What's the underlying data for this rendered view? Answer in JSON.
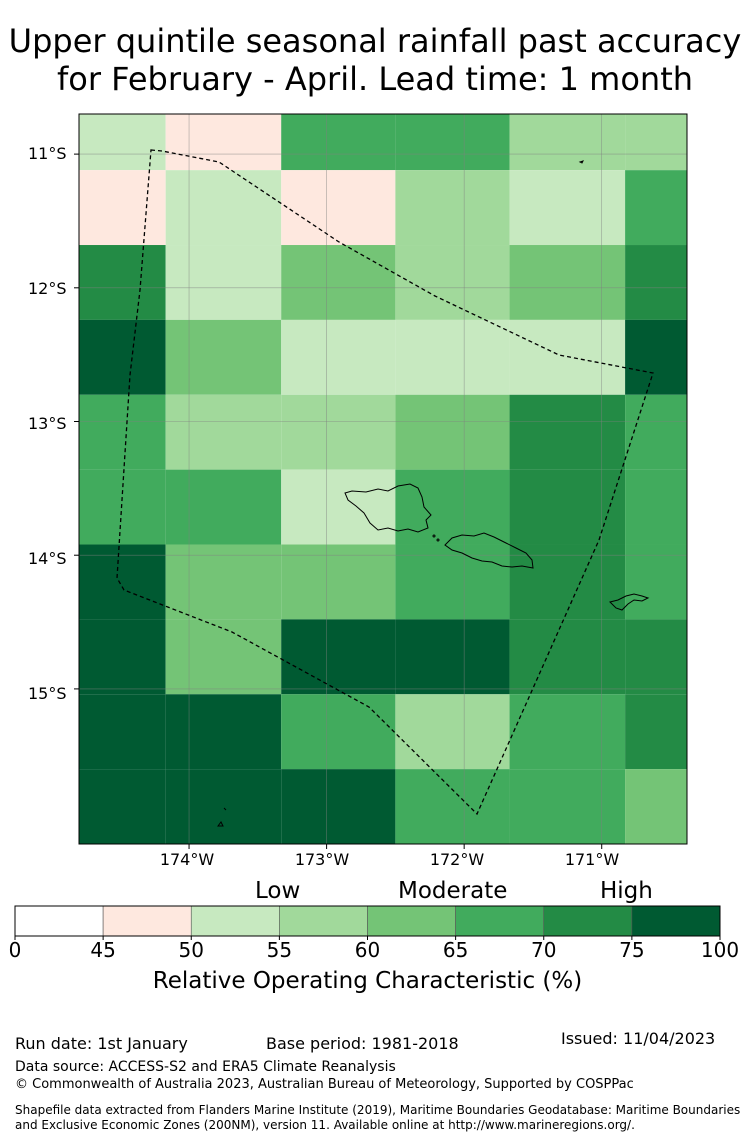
{
  "title": {
    "line1": "Upper quintile seasonal rainfall past accuracy",
    "line2": "for February - April. Lead time: 1 month"
  },
  "map": {
    "lat_labels": [
      "11°S",
      "12°S",
      "13°S",
      "14°S",
      "15°S"
    ],
    "lon_labels": [
      "174°W",
      "173°W",
      "172°W",
      "171°W"
    ],
    "roc_grid": [
      [
        50,
        45,
        65,
        65,
        55,
        55
      ],
      [
        45,
        50,
        45,
        55,
        50,
        65
      ],
      [
        70,
        50,
        60,
        55,
        60,
        70
      ],
      [
        75,
        60,
        50,
        50,
        50,
        100
      ],
      [
        65,
        55,
        55,
        60,
        70,
        65
      ],
      [
        65,
        65,
        50,
        65,
        70,
        65
      ],
      [
        75,
        60,
        60,
        65,
        70,
        65
      ],
      [
        100,
        60,
        75,
        100,
        70,
        70
      ],
      [
        100,
        100,
        65,
        55,
        65,
        70
      ],
      [
        100,
        100,
        100,
        65,
        65,
        60
      ]
    ],
    "grid_lat_bounds": [
      10.7,
      11.12,
      11.68,
      12.24,
      12.8,
      13.36,
      13.92,
      14.48,
      15.04,
      15.6,
      16.16
    ],
    "grid_lon_bounds": [
      -174.8,
      -174.17,
      -173.33,
      -172.5,
      -171.67,
      -170.83,
      -170.38
    ],
    "colors": {
      "white": "#ffffff",
      "low_45_50": "#fee8df",
      "c50_55": "#c7e9c0",
      "c55_60": "#a1d99b",
      "c60_65": "#74c476",
      "c65_70": "#41ab5d",
      "c70_75": "#238b45",
      "c75_100": "#005a32"
    }
  },
  "colorbar": {
    "bounds": [
      0,
      45,
      50,
      55,
      60,
      65,
      70,
      75,
      100
    ],
    "tick_labels": [
      "0",
      "45",
      "50",
      "55",
      "60",
      "65",
      "70",
      "75",
      "100"
    ],
    "colors": [
      "#ffffff",
      "#fee8df",
      "#c7e9c0",
      "#a1d99b",
      "#74c476",
      "#41ab5d",
      "#238b45",
      "#005a32"
    ],
    "categories": [
      "Low",
      "Moderate",
      "High"
    ],
    "title": "Relative Operating Characteristic (%)"
  },
  "footer": {
    "run_date": "Run date: 1st January",
    "base_period": "Base period: 1981-2018",
    "issued": "Issued: 11/04/2023",
    "data_source": "Data source: ACCESS-S2 and ERA5 Climate Reanalysis",
    "copyright": "© Commonwealth of Australia 2023, Australian Bureau of Meteorology, Supported by COSPPac",
    "shapefile_line1": "Shapefile data extracted from Flanders Marine Institute (2019), Maritime Boundaries Geodatabase: Maritime Boundaries",
    "shapefile_line2": "and Exclusive Economic Zones (200NM), version 11. Available online at http://www.marineregions.org/."
  }
}
